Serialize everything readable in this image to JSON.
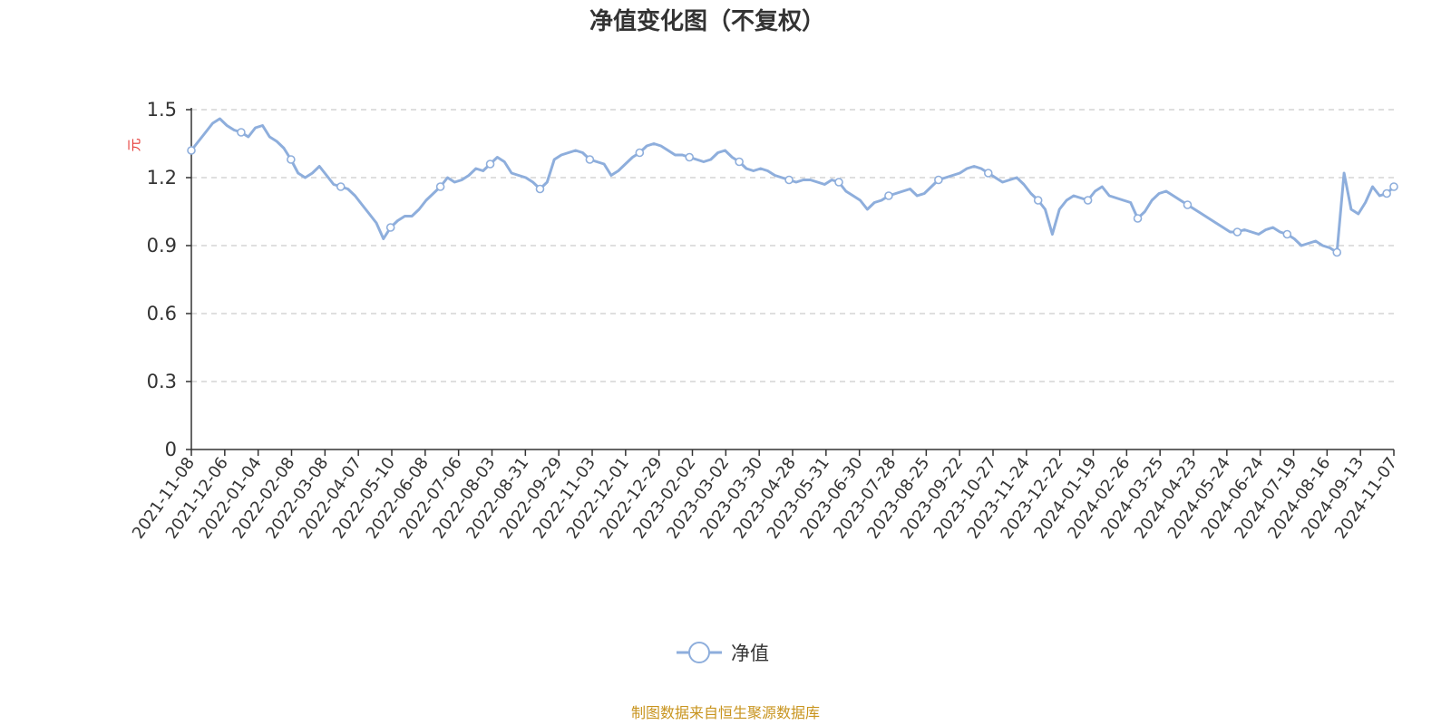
{
  "chart_data": {
    "type": "line",
    "title": "净值变化图（不复权）",
    "ylabel": "元",
    "ylim": [
      0,
      1.5
    ],
    "yticks": [
      "0",
      "0.3",
      "0.6",
      "0.9",
      "1.2",
      "1.5"
    ],
    "grid": true,
    "legend_position": "bottom-center",
    "x_ticks": [
      "2021-11-08",
      "2021-12-06",
      "2022-01-04",
      "2022-02-08",
      "2022-03-08",
      "2022-04-07",
      "2022-05-10",
      "2022-06-08",
      "2022-07-06",
      "2022-08-03",
      "2022-08-31",
      "2022-09-29",
      "2022-11-03",
      "2022-12-01",
      "2022-12-29",
      "2023-02-02",
      "2023-03-02",
      "2023-03-30",
      "2023-04-28",
      "2023-05-31",
      "2023-06-30",
      "2023-07-28",
      "2023-08-25",
      "2023-09-22",
      "2023-10-27",
      "2023-11-24",
      "2023-12-22",
      "2024-01-19",
      "2024-02-26",
      "2024-03-25",
      "2024-04-23",
      "2024-05-24",
      "2024-06-24",
      "2024-07-19",
      "2024-08-16",
      "2024-09-13",
      "2024-11-07"
    ],
    "series": [
      {
        "name": "净值",
        "color": "#8eaedc",
        "values": [
          1.32,
          1.36,
          1.4,
          1.44,
          1.46,
          1.43,
          1.41,
          1.4,
          1.38,
          1.42,
          1.43,
          1.38,
          1.36,
          1.33,
          1.28,
          1.22,
          1.2,
          1.22,
          1.25,
          1.21,
          1.17,
          1.16,
          1.15,
          1.12,
          1.08,
          1.04,
          1.0,
          0.93,
          0.98,
          1.01,
          1.03,
          1.03,
          1.06,
          1.1,
          1.13,
          1.16,
          1.2,
          1.18,
          1.19,
          1.21,
          1.24,
          1.23,
          1.26,
          1.29,
          1.27,
          1.22,
          1.21,
          1.2,
          1.18,
          1.15,
          1.18,
          1.28,
          1.3,
          1.31,
          1.32,
          1.31,
          1.28,
          1.27,
          1.26,
          1.21,
          1.23,
          1.26,
          1.29,
          1.31,
          1.34,
          1.35,
          1.34,
          1.32,
          1.3,
          1.3,
          1.29,
          1.28,
          1.27,
          1.28,
          1.31,
          1.32,
          1.29,
          1.27,
          1.24,
          1.23,
          1.24,
          1.23,
          1.21,
          1.2,
          1.19,
          1.18,
          1.19,
          1.19,
          1.18,
          1.17,
          1.19,
          1.18,
          1.14,
          1.12,
          1.1,
          1.06,
          1.09,
          1.1,
          1.12,
          1.13,
          1.14,
          1.15,
          1.12,
          1.13,
          1.16,
          1.19,
          1.2,
          1.21,
          1.22,
          1.24,
          1.25,
          1.24,
          1.22,
          1.2,
          1.18,
          1.19,
          1.2,
          1.17,
          1.13,
          1.1,
          1.06,
          0.95,
          1.06,
          1.1,
          1.12,
          1.11,
          1.1,
          1.14,
          1.16,
          1.12,
          1.11,
          1.1,
          1.09,
          1.02,
          1.05,
          1.1,
          1.13,
          1.14,
          1.12,
          1.1,
          1.08,
          1.06,
          1.04,
          1.02,
          1.0,
          0.98,
          0.96,
          0.96,
          0.97,
          0.96,
          0.95,
          0.97,
          0.98,
          0.96,
          0.95,
          0.93,
          0.9,
          0.91,
          0.92,
          0.9,
          0.89,
          0.87,
          1.22,
          1.06,
          1.04,
          1.09,
          1.16,
          1.12,
          1.13,
          1.16
        ]
      }
    ],
    "marker_every": 7
  },
  "legend": {
    "label": "净值"
  },
  "source": {
    "text": "制图数据来自恒生聚源数据库"
  }
}
